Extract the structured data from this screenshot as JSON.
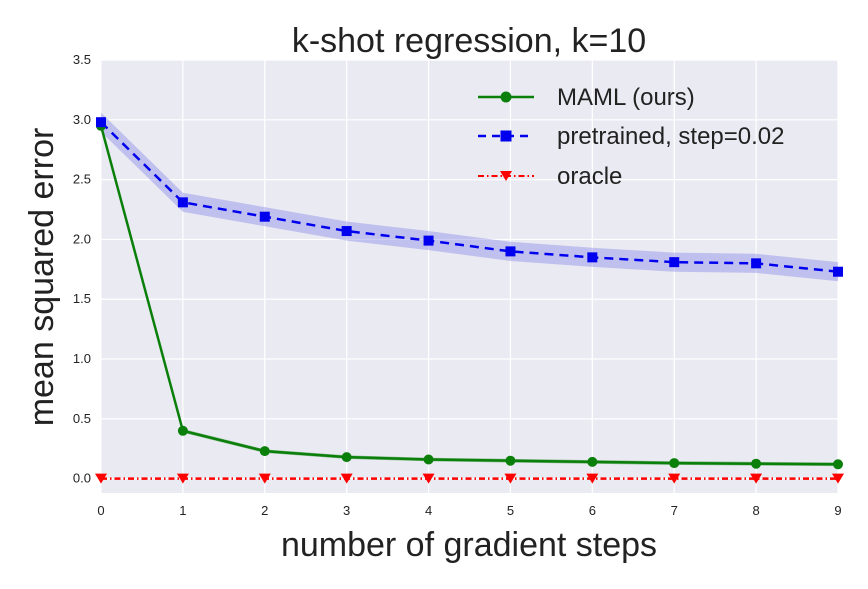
{
  "chart_data": {
    "type": "line",
    "title": "k-shot regression, k=10",
    "xlabel": "number of gradient steps",
    "ylabel": "mean squared error",
    "x": [
      0,
      1,
      2,
      3,
      4,
      5,
      6,
      7,
      8,
      9
    ],
    "xlim": [
      0,
      9
    ],
    "ylim": [
      -0.12,
      3.5
    ],
    "xticks": [
      0,
      1,
      2,
      3,
      4,
      5,
      6,
      7,
      8,
      9
    ],
    "yticks": [
      0.0,
      0.5,
      1.0,
      1.5,
      2.0,
      2.5,
      3.0,
      3.5
    ],
    "xtick_labels": [
      "0",
      "1",
      "2",
      "3",
      "4",
      "5",
      "6",
      "7",
      "8",
      "9"
    ],
    "ytick_labels": [
      "0.0",
      "0.5",
      "1.0",
      "1.5",
      "2.0",
      "2.5",
      "3.0",
      "3.5"
    ],
    "grid": true,
    "background": "#eaeaf2",
    "legend_position": "top-right",
    "series": [
      {
        "name": "MAML (ours)",
        "values": [
          2.95,
          0.4,
          0.23,
          0.18,
          0.16,
          0.15,
          0.14,
          0.13,
          0.125,
          0.12
        ],
        "band": 0.015,
        "color": "#0a7f0a",
        "line_style": "solid",
        "marker": "circle"
      },
      {
        "name": "pretrained, step=0.02",
        "values": [
          2.98,
          2.31,
          2.19,
          2.07,
          1.99,
          1.9,
          1.85,
          1.81,
          1.8,
          1.73
        ],
        "band": 0.08,
        "color": "#0000ee",
        "band_color": "#8f8fe8",
        "line_style": "dashed",
        "marker": "square"
      },
      {
        "name": "oracle",
        "values": [
          0.0,
          0.0,
          0.0,
          0.0,
          0.0,
          0.0,
          0.0,
          0.0,
          0.0,
          0.0
        ],
        "band": 0,
        "color": "#ff0000",
        "line_style": "dashdot",
        "marker": "triangle-down"
      }
    ]
  }
}
